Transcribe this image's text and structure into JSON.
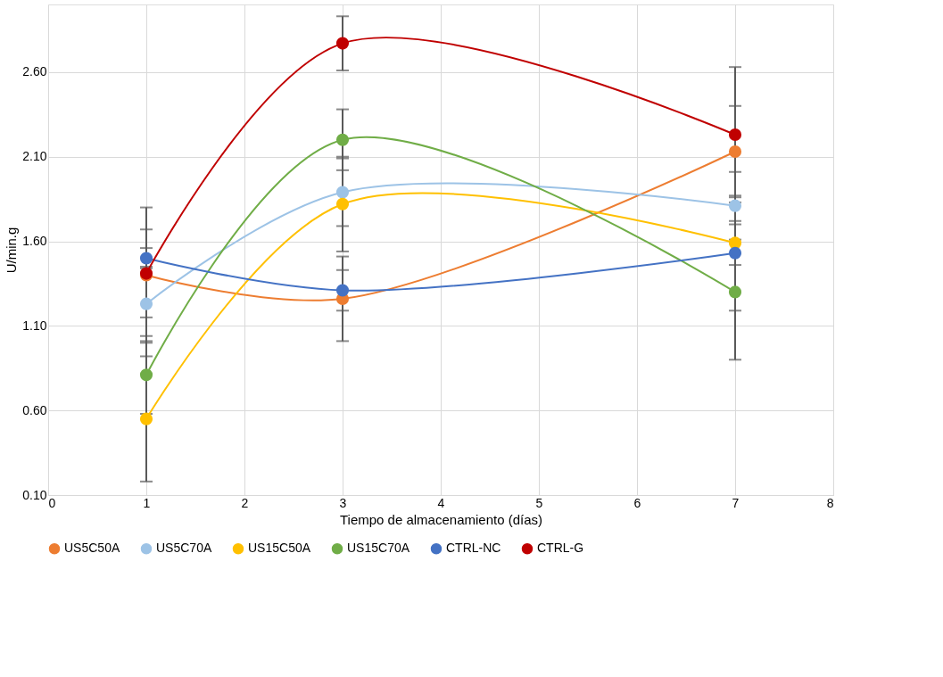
{
  "chart_data": {
    "type": "line",
    "xlabel": "Tiempo de almacenamiento (días)",
    "ylabel": "U/min.g",
    "x": [
      1,
      3,
      7
    ],
    "series": [
      {
        "name": "US5C50A",
        "color": "#ed7d31",
        "values": [
          1.4,
          1.26,
          2.13
        ],
        "errors": [
          0.4,
          0.25,
          0.27
        ]
      },
      {
        "name": "US5C70A",
        "color": "#9dc3e6",
        "values": [
          1.23,
          1.89,
          1.81
        ],
        "errors": [
          0.22,
          0.2,
          0.2
        ]
      },
      {
        "name": "US15C50A",
        "color": "#ffc000",
        "values": [
          0.55,
          1.82,
          1.59
        ],
        "errors": [
          0.37,
          0.28,
          0.13
        ]
      },
      {
        "name": "US15C70A",
        "color": "#70ad47",
        "values": [
          0.81,
          2.2,
          1.3
        ],
        "errors": [
          0.23,
          0.18,
          0.4
        ]
      },
      {
        "name": "CTRL-NC",
        "color": "#4472c4",
        "values": [
          1.5,
          1.31,
          1.53
        ],
        "errors": [
          0.06,
          0.12,
          0.34
        ]
      },
      {
        "name": "CTRL-G",
        "color": "#c00000",
        "values": [
          1.41,
          2.77,
          2.23
        ],
        "errors": [
          0.26,
          0.16,
          0.4
        ]
      }
    ],
    "xlim": [
      0,
      8
    ],
    "xticks": [
      0,
      1,
      2,
      3,
      4,
      5,
      6,
      7,
      8
    ],
    "ylim": [
      0.1,
      3.0
    ],
    "yticks": [
      {
        "value": 0.1,
        "label": "0.10"
      },
      {
        "value": 0.6,
        "label": "0.60"
      },
      {
        "value": 1.1,
        "label": "1.10"
      },
      {
        "value": 1.6,
        "label": "1.60"
      },
      {
        "value": 2.1,
        "label": "2.10"
      },
      {
        "value": 2.6,
        "label": "2.60"
      }
    ],
    "grid": true,
    "legend": "bottom",
    "marker": "circle",
    "line_style": "solid"
  }
}
